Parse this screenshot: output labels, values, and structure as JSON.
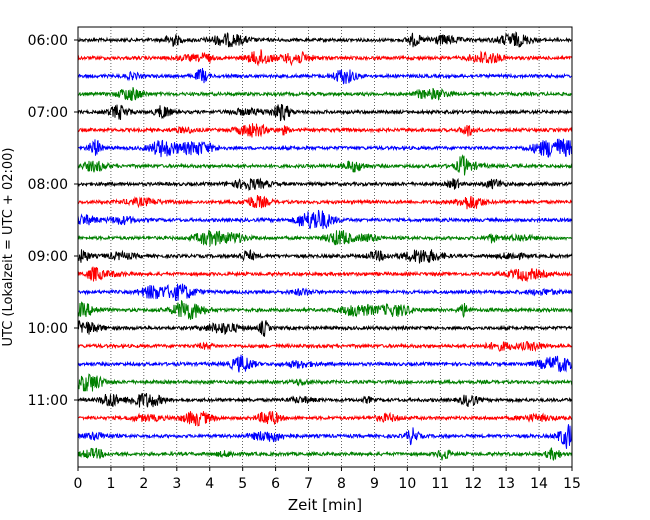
{
  "chart_data": {
    "type": "line",
    "title": "",
    "xlabel": "Zeit  [min]",
    "ylabel": "UTC (Lokalzeit = UTC + 02:00)",
    "xlim": [
      0,
      15
    ],
    "x_ticks": [
      0,
      1,
      2,
      3,
      4,
      5,
      6,
      7,
      8,
      9,
      10,
      11,
      12,
      13,
      14,
      15
    ],
    "y_tick_labels": [
      "06:00",
      "07:00",
      "08:00",
      "09:00",
      "10:00",
      "11:00"
    ],
    "grid": "vertical dotted",
    "series_colors": [
      "#000000",
      "#ff0000",
      "#0000ff",
      "#008000"
    ],
    "traces": [
      {
        "start": "06:00",
        "color": "#000000"
      },
      {
        "start": "06:15",
        "color": "#ff0000"
      },
      {
        "start": "06:30",
        "color": "#0000ff"
      },
      {
        "start": "06:45",
        "color": "#008000"
      },
      {
        "start": "07:00",
        "color": "#000000"
      },
      {
        "start": "07:15",
        "color": "#ff0000"
      },
      {
        "start": "07:30",
        "color": "#0000ff"
      },
      {
        "start": "07:45",
        "color": "#008000"
      },
      {
        "start": "08:00",
        "color": "#000000"
      },
      {
        "start": "08:15",
        "color": "#ff0000"
      },
      {
        "start": "08:30",
        "color": "#0000ff"
      },
      {
        "start": "08:45",
        "color": "#008000"
      },
      {
        "start": "09:00",
        "color": "#000000"
      },
      {
        "start": "09:15",
        "color": "#ff0000"
      },
      {
        "start": "09:30",
        "color": "#0000ff"
      },
      {
        "start": "09:45",
        "color": "#008000"
      },
      {
        "start": "10:00",
        "color": "#000000"
      },
      {
        "start": "10:15",
        "color": "#ff0000"
      },
      {
        "start": "10:30",
        "color": "#0000ff"
      },
      {
        "start": "10:45",
        "color": "#008000"
      },
      {
        "start": "11:00",
        "color": "#000000"
      },
      {
        "start": "11:15",
        "color": "#ff0000"
      },
      {
        "start": "11:30",
        "color": "#0000ff"
      },
      {
        "start": "11:45",
        "color": "#008000"
      }
    ]
  }
}
